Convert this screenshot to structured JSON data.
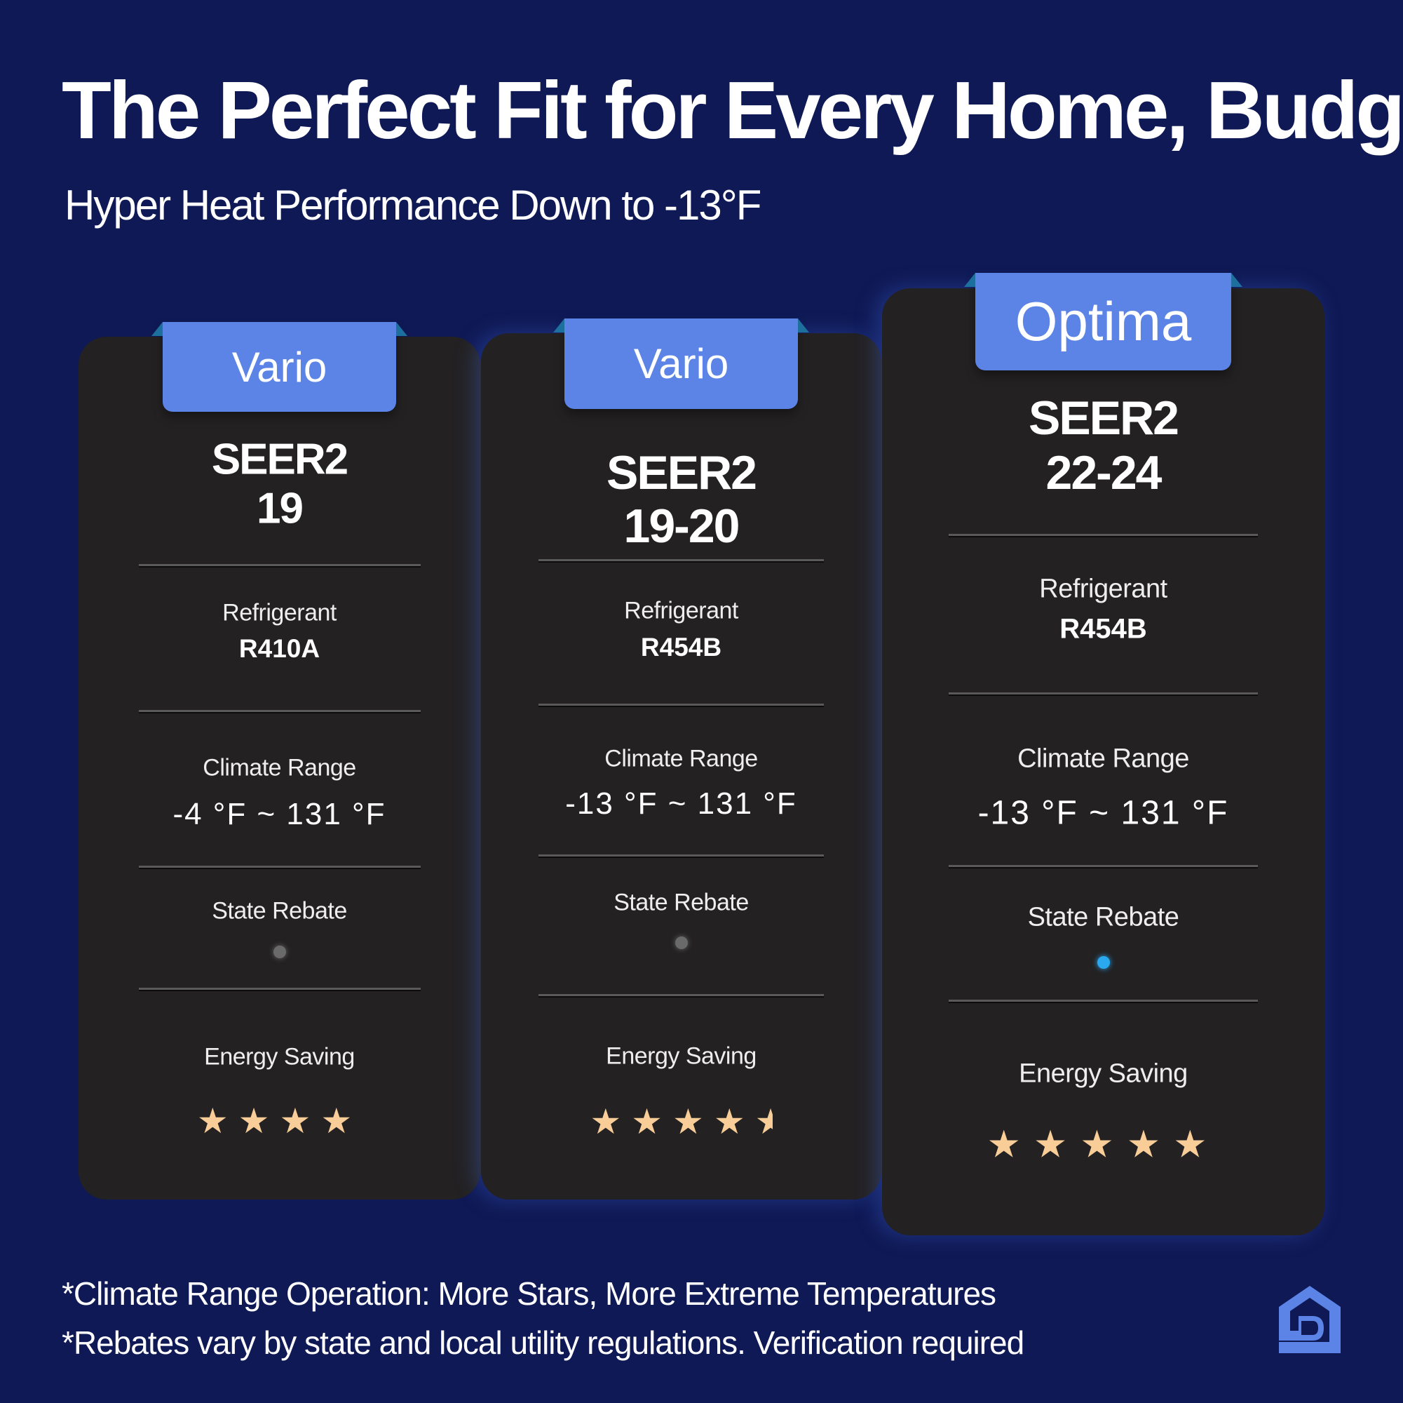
{
  "header": {
    "title": "The Perfect Fit for Every Home, Budget",
    "subtitle": "Hyper Heat Performance Down to -13°F"
  },
  "cards": [
    {
      "tab": "Vario",
      "seer_label": "SEER2",
      "seer_value": "19",
      "refrigerant_label": "Refrigerant",
      "refrigerant_value": "R410A",
      "climate_label": "Climate Range",
      "climate_value": "-4 °F ~ 131 °F",
      "rebate_label": "State Rebate",
      "rebate_available": false,
      "energy_label": "Energy Saving",
      "energy_stars": 4
    },
    {
      "tab": "Vario",
      "seer_label": "SEER2",
      "seer_value": "19-20",
      "refrigerant_label": "Refrigerant",
      "refrigerant_value": "R454B",
      "climate_label": "Climate Range",
      "climate_value": "-13 °F ~ 131 °F",
      "rebate_label": "State Rebate",
      "rebate_available": false,
      "energy_label": "Energy Saving",
      "energy_stars": 4.5
    },
    {
      "tab": "Optima",
      "seer_label": "SEER2",
      "seer_value": "22-24",
      "refrigerant_label": "Refrigerant",
      "refrigerant_value": "R454B",
      "climate_label": "Climate Range",
      "climate_value": "-13 °F ~ 131 °F",
      "rebate_label": "State Rebate",
      "rebate_available": true,
      "energy_label": "Energy Saving",
      "energy_stars": 5
    }
  ],
  "footnotes": [
    "*Climate Range Operation: More Stars, More Extreme Temperatures",
    "*Rebates vary by state and local utility regulations. Verification required"
  ],
  "colors": {
    "background": "#0f1955",
    "card": "#232122",
    "tab": "#5b84e6",
    "star": "#f8cd98",
    "rebate_on": "#2aa8f0",
    "rebate_off": "#6a6a6a",
    "logo": "#5b84e6"
  },
  "logo": {
    "icon": "house-logo-icon"
  }
}
